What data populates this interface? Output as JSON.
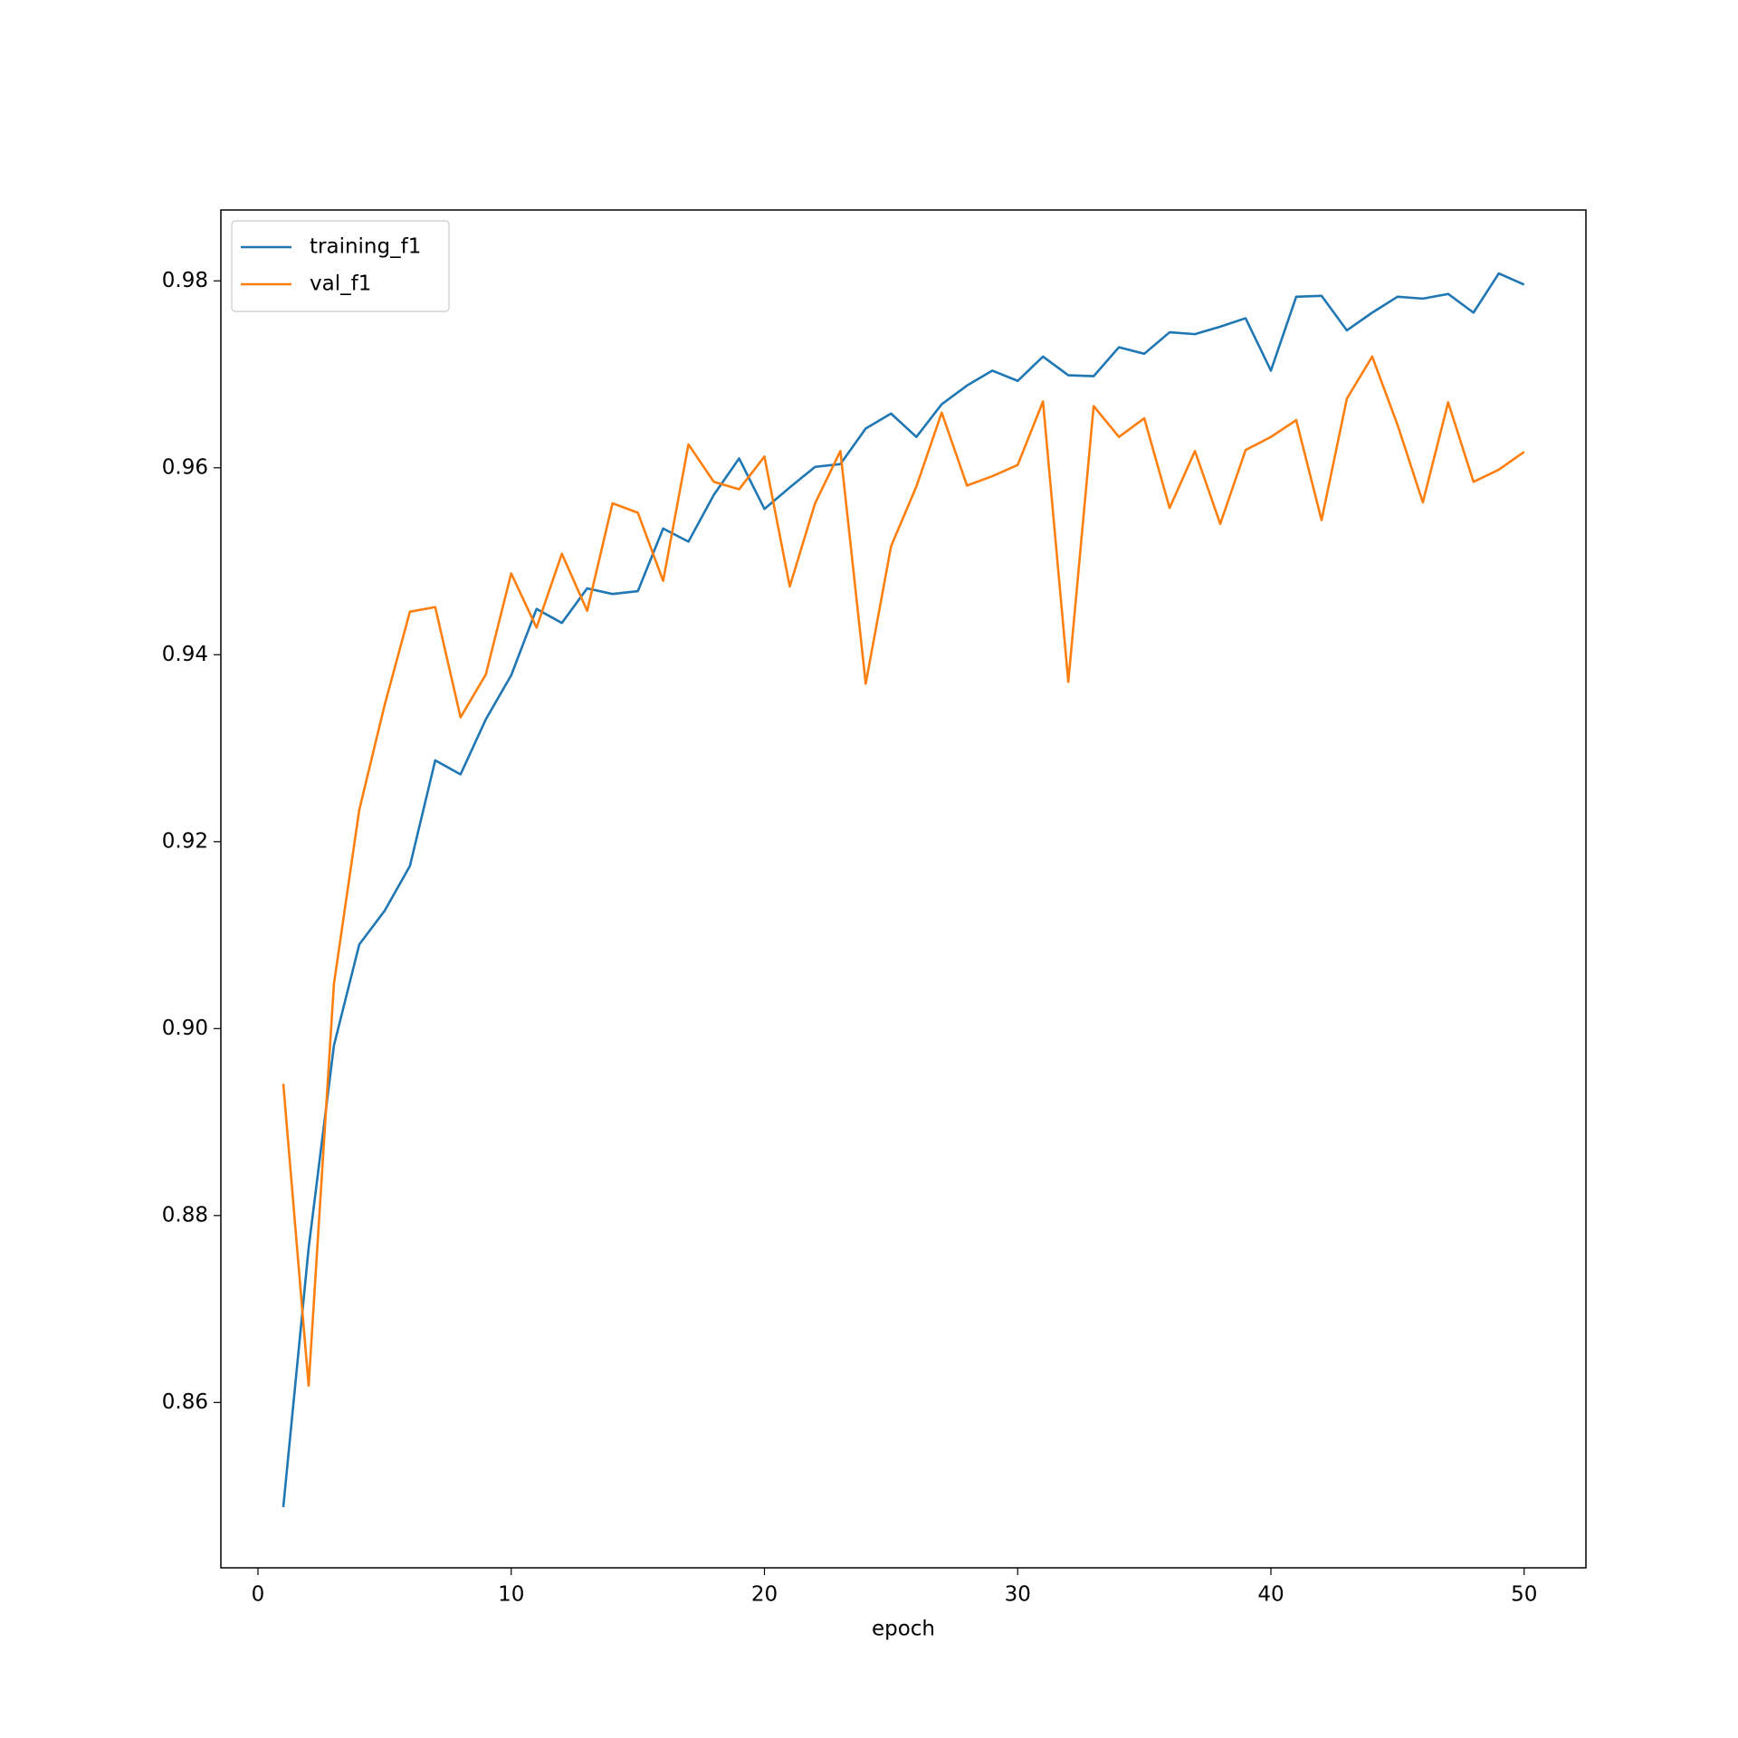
{
  "chart_data": {
    "type": "line",
    "xlabel": "epoch",
    "x": [
      1,
      2,
      3,
      4,
      5,
      6,
      7,
      8,
      9,
      10,
      11,
      12,
      13,
      14,
      15,
      16,
      17,
      18,
      19,
      20,
      21,
      22,
      23,
      24,
      25,
      26,
      27,
      28,
      29,
      30,
      31,
      32,
      33,
      34,
      35,
      36,
      37,
      38,
      39,
      40,
      41,
      42,
      43,
      44,
      45,
      46,
      47,
      48,
      49,
      50
    ],
    "series": [
      {
        "name": "training_f1",
        "color": "#1f77b4",
        "values": [
          0.8488,
          0.8765,
          0.8982,
          0.909,
          0.9126,
          0.9174,
          0.9287,
          0.9272,
          0.9331,
          0.9378,
          0.9449,
          0.9434,
          0.9471,
          0.9465,
          0.9468,
          0.9535,
          0.9521,
          0.9571,
          0.961,
          0.9556,
          0.9579,
          0.9601,
          0.9604,
          0.9642,
          0.9658,
          0.9633,
          0.9668,
          0.9688,
          0.9704,
          0.9693,
          0.9719,
          0.9699,
          0.9698,
          0.9729,
          0.9722,
          0.9745,
          0.9743,
          0.9751,
          0.976,
          0.9704,
          0.9783,
          0.9784,
          0.9747,
          0.9766,
          0.9783,
          0.9781,
          0.9786,
          0.9766,
          0.9808,
          0.9796
        ]
      },
      {
        "name": "val_f1",
        "color": "#ff7f0e",
        "values": [
          0.8941,
          0.8618,
          0.9048,
          0.9234,
          0.9346,
          0.9446,
          0.9451,
          0.9333,
          0.9379,
          0.9487,
          0.9429,
          0.9508,
          0.9447,
          0.9562,
          0.9552,
          0.9479,
          0.9625,
          0.9585,
          0.9577,
          0.9612,
          0.9473,
          0.9562,
          0.9618,
          0.9369,
          0.9516,
          0.958,
          0.9659,
          0.9581,
          0.9591,
          0.9603,
          0.9671,
          0.9371,
          0.9666,
          0.9633,
          0.9653,
          0.9557,
          0.9618,
          0.954,
          0.9619,
          0.9633,
          0.9651,
          0.9544,
          0.9674,
          0.9719,
          0.9646,
          0.9563,
          0.967,
          0.9585,
          0.9598,
          0.9617
        ]
      }
    ],
    "xlim": [
      -1.465,
      52.44
    ],
    "ylim": [
      0.84231,
      0.98758
    ],
    "xticks": [
      0,
      10,
      20,
      30,
      40,
      50
    ],
    "yticks": [
      0.86,
      0.88,
      {
        "value": 0.9,
        "label": "0.90"
      },
      0.92,
      0.94,
      0.96,
      0.98
    ],
    "legend": "upper left"
  }
}
